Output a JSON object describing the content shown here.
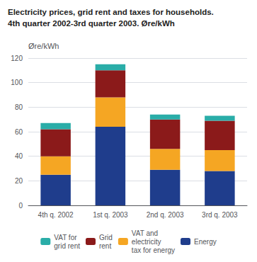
{
  "chart_data": {
    "type": "bar",
    "title": "Electricity prices, grid rent and taxes for households.",
    "subtitle": "4th quarter 2002-3rd quarter 2003. Øre/kWh",
    "ylabel": "Øre/kWh",
    "categories": [
      "4th q. 2002",
      "1st q. 2003",
      "2nd q. 2003",
      "3rd q. 2003"
    ],
    "stacked": true,
    "series": [
      {
        "name": "Energy",
        "color": "#1f3d8c",
        "values": [
          25,
          64,
          29,
          28
        ]
      },
      {
        "name": "VAT and\nelectricity\ntax for energy",
        "color": "#f5a623",
        "values": [
          15,
          24,
          17,
          17
        ]
      },
      {
        "name": "Grid\nrent",
        "color": "#8b1a1a",
        "values": [
          22,
          22,
          24,
          24
        ]
      },
      {
        "name": "VAT for\ngrid rent",
        "color": "#2aada8",
        "values": [
          5,
          5,
          4,
          4
        ]
      }
    ],
    "ylim": [
      0,
      120
    ],
    "yticks": [
      0,
      20,
      40,
      60,
      80,
      100,
      120
    ],
    "grid": true,
    "legend": "bottom"
  }
}
